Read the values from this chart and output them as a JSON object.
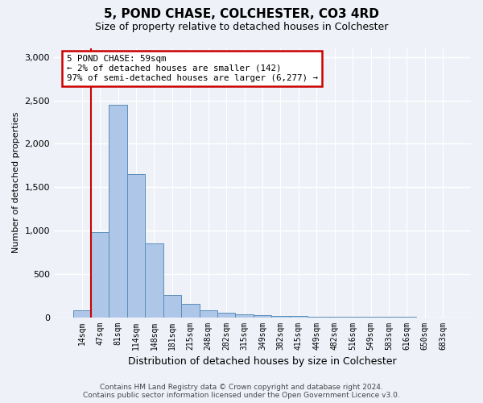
{
  "title": "5, POND CHASE, COLCHESTER, CO3 4RD",
  "subtitle": "Size of property relative to detached houses in Colchester",
  "xlabel": "Distribution of detached houses by size in Colchester",
  "ylabel": "Number of detached properties",
  "footer_line1": "Contains HM Land Registry data © Crown copyright and database right 2024.",
  "footer_line2": "Contains public sector information licensed under the Open Government Licence v3.0.",
  "bin_labels": [
    "14sqm",
    "47sqm",
    "81sqm",
    "114sqm",
    "148sqm",
    "181sqm",
    "215sqm",
    "248sqm",
    "282sqm",
    "315sqm",
    "349sqm",
    "382sqm",
    "415sqm",
    "449sqm",
    "482sqm",
    "516sqm",
    "549sqm",
    "583sqm",
    "616sqm",
    "650sqm",
    "683sqm"
  ],
  "bar_values": [
    75,
    980,
    2450,
    1650,
    850,
    260,
    150,
    80,
    55,
    35,
    20,
    15,
    10,
    8,
    5,
    3,
    2,
    1,
    1,
    0,
    0
  ],
  "bar_color": "#aec6e8",
  "bar_edge_color": "#5b8db8",
  "property_line_x": 0.5,
  "property_line_label": "5 POND CHASE: 59sqm",
  "annotation_line1": "← 2% of detached houses are smaller (142)",
  "annotation_line2": "97% of semi-detached houses are larger (6,277) →",
  "annotation_box_color": "#ffffff",
  "annotation_box_edge_color": "#cc0000",
  "ylim": [
    0,
    3100
  ],
  "yticks": [
    0,
    500,
    1000,
    1500,
    2000,
    2500,
    3000
  ],
  "red_line_color": "#cc0000",
  "background_color": "#eef2f8"
}
